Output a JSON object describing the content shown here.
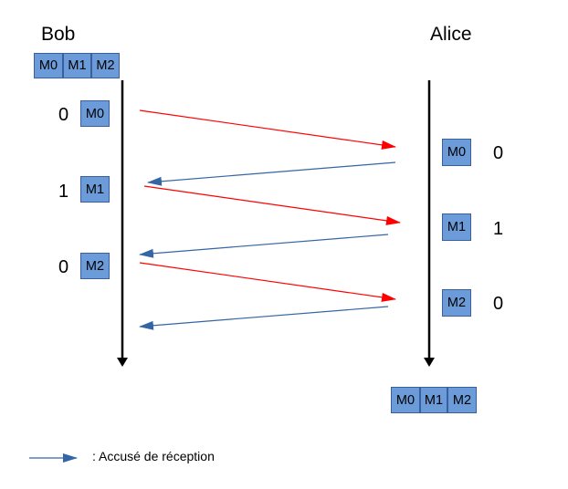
{
  "bob": {
    "name": "Bob",
    "queue": [
      "M0",
      "M1",
      "M2"
    ],
    "events": [
      {
        "seq": "0",
        "msg": "M0"
      },
      {
        "seq": "1",
        "msg": "M1"
      },
      {
        "seq": "0",
        "msg": "M2"
      }
    ]
  },
  "alice": {
    "name": "Alice",
    "queue": [
      "M0",
      "M1",
      "M2"
    ],
    "events": [
      {
        "seq": "0",
        "msg": "M0"
      },
      {
        "seq": "1",
        "msg": "M1"
      },
      {
        "seq": "0",
        "msg": "M2"
      }
    ]
  },
  "colors": {
    "message_arrow": "#ff0000",
    "ack_arrow": "#3465a4",
    "box_fill": "#6b9bd8",
    "timeline": "#000000"
  },
  "legend": {
    "label": ": Accusé de réception"
  }
}
